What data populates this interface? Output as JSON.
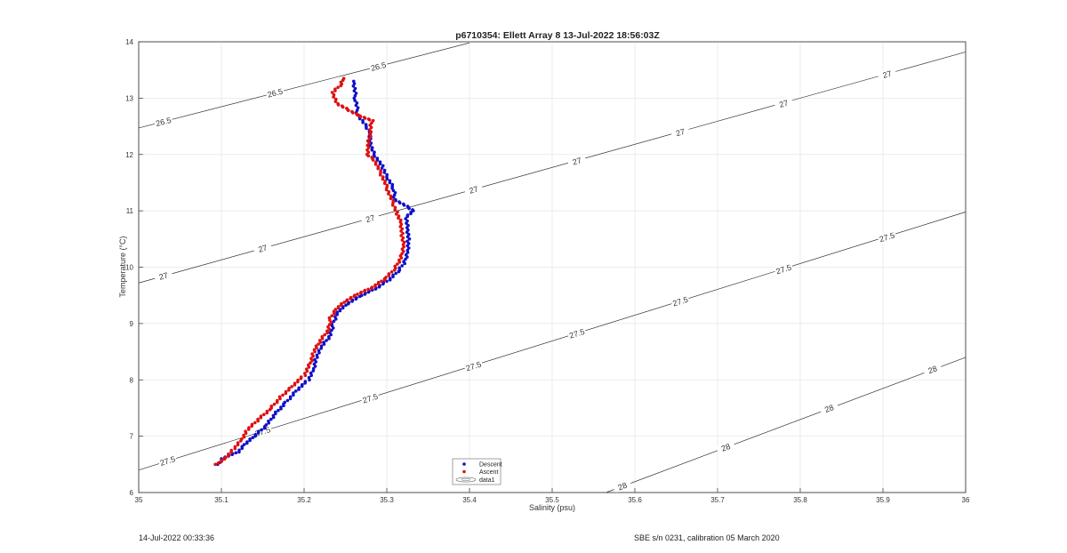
{
  "chart_data": {
    "type": "scatter",
    "title": "p6710354: Ellett Array 8 13-Jul-2022 18:56:03Z",
    "xlabel": "Salinity (psu)",
    "ylabel": "Temperature (°C)",
    "xlim": [
      35,
      36
    ],
    "ylim": [
      6,
      14
    ],
    "xticks": [
      "35",
      "35.1",
      "35.2",
      "35.3",
      "35.4",
      "35.5",
      "35.6",
      "35.7",
      "35.8",
      "35.9",
      "36"
    ],
    "yticks": [
      "6",
      "7",
      "8",
      "9",
      "10",
      "11",
      "12",
      "13",
      "14"
    ],
    "grid": true,
    "legend": {
      "placement": "bottom-center",
      "entries": [
        "Descent",
        "Ascent",
        "data1"
      ]
    },
    "colors": {
      "descent": "#1010c8",
      "ascent": "#dd1111",
      "contour": "#333333",
      "grid": "#e6e6e6"
    },
    "series": [
      {
        "name": "Descent",
        "points": [
          [
            35.097,
            6.5
          ],
          [
            35.1,
            6.6
          ],
          [
            35.12,
            6.72
          ],
          [
            35.128,
            6.85
          ],
          [
            35.14,
            7.0
          ],
          [
            35.155,
            7.2
          ],
          [
            35.165,
            7.4
          ],
          [
            35.178,
            7.6
          ],
          [
            35.19,
            7.8
          ],
          [
            35.205,
            8.0
          ],
          [
            35.212,
            8.2
          ],
          [
            35.215,
            8.4
          ],
          [
            35.222,
            8.6
          ],
          [
            35.232,
            8.8
          ],
          [
            35.235,
            9.0
          ],
          [
            35.24,
            9.2
          ],
          [
            35.252,
            9.35
          ],
          [
            35.27,
            9.5
          ],
          [
            35.29,
            9.65
          ],
          [
            35.305,
            9.8
          ],
          [
            35.315,
            9.95
          ],
          [
            35.322,
            10.1
          ],
          [
            35.325,
            10.3
          ],
          [
            35.326,
            10.5
          ],
          [
            35.325,
            10.7
          ],
          [
            35.324,
            10.9
          ],
          [
            35.333,
            11.0
          ],
          [
            35.31,
            11.2
          ],
          [
            35.308,
            11.4
          ],
          [
            35.3,
            11.6
          ],
          [
            35.294,
            11.8
          ],
          [
            35.285,
            12.0
          ],
          [
            35.28,
            12.2
          ],
          [
            35.28,
            12.4
          ],
          [
            35.265,
            12.7
          ],
          [
            35.262,
            13.0
          ],
          [
            35.26,
            13.3
          ]
        ]
      },
      {
        "name": "Ascent",
        "points": [
          [
            35.094,
            6.5
          ],
          [
            35.105,
            6.62
          ],
          [
            35.115,
            6.78
          ],
          [
            35.125,
            6.95
          ],
          [
            35.132,
            7.12
          ],
          [
            35.145,
            7.3
          ],
          [
            35.16,
            7.5
          ],
          [
            35.172,
            7.7
          ],
          [
            35.185,
            7.88
          ],
          [
            35.2,
            8.08
          ],
          [
            35.208,
            8.3
          ],
          [
            35.212,
            8.5
          ],
          [
            35.22,
            8.7
          ],
          [
            35.23,
            8.9
          ],
          [
            35.232,
            9.1
          ],
          [
            35.238,
            9.25
          ],
          [
            35.25,
            9.4
          ],
          [
            35.265,
            9.52
          ],
          [
            35.285,
            9.66
          ],
          [
            35.3,
            9.82
          ],
          [
            35.31,
            9.98
          ],
          [
            35.318,
            10.2
          ],
          [
            35.32,
            10.4
          ],
          [
            35.318,
            10.6
          ],
          [
            35.317,
            10.8
          ],
          [
            35.312,
            10.98
          ],
          [
            35.303,
            11.3
          ],
          [
            35.295,
            11.6
          ],
          [
            35.285,
            11.9
          ],
          [
            35.276,
            12.0
          ],
          [
            35.282,
            12.6
          ],
          [
            35.265,
            12.7
          ],
          [
            35.24,
            12.9
          ],
          [
            35.235,
            13.1
          ],
          [
            35.245,
            13.25
          ],
          [
            35.248,
            13.35
          ]
        ]
      }
    ],
    "contours": [
      {
        "level": "26.5",
        "line": [
          [
            35.0,
            12.47
          ],
          [
            35.4,
            13.98
          ]
        ],
        "labels": [
          [
            35.03,
            12.58
          ],
          [
            35.165,
            13.09
          ],
          [
            35.29,
            13.56
          ]
        ]
      },
      {
        "level": "27",
        "line": [
          [
            35.0,
            9.72
          ],
          [
            36.0,
            13.82
          ]
        ],
        "labels": [
          [
            35.03,
            9.84
          ],
          [
            35.15,
            10.33
          ],
          [
            35.28,
            10.86
          ],
          [
            35.405,
            11.37
          ],
          [
            35.53,
            11.88
          ],
          [
            35.655,
            12.39
          ],
          [
            35.78,
            12.9
          ],
          [
            35.905,
            13.42
          ]
        ]
      },
      {
        "level": "27.5",
        "line": [
          [
            35.0,
            6.4
          ],
          [
            36.0,
            10.98
          ]
        ],
        "labels": [
          [
            35.035,
            6.56
          ],
          [
            35.15,
            7.08
          ],
          [
            35.28,
            7.67
          ],
          [
            35.405,
            8.24
          ],
          [
            35.53,
            8.82
          ],
          [
            35.655,
            9.39
          ],
          [
            35.78,
            9.96
          ],
          [
            35.905,
            10.53
          ]
        ]
      },
      {
        "level": "28",
        "line": [
          [
            35.565,
            6.0
          ],
          [
            36.0,
            8.4
          ]
        ],
        "labels": [
          [
            35.585,
            6.11
          ],
          [
            35.71,
            6.8
          ],
          [
            35.835,
            7.49
          ],
          [
            35.96,
            8.18
          ]
        ]
      }
    ]
  },
  "footer": {
    "left": "14-Jul-2022 00:33:36",
    "right": "SBE s/n 0231, calibration 05 March 2020"
  }
}
